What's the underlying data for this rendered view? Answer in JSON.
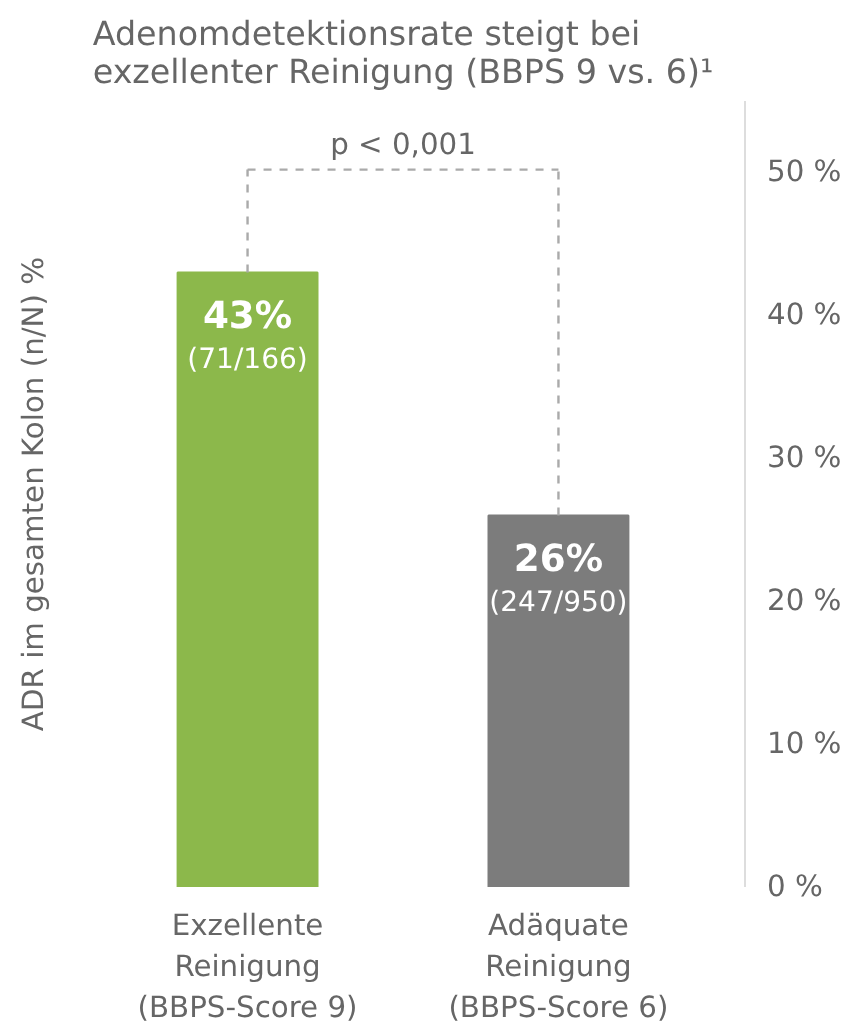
{
  "chart_data": {
    "type": "bar",
    "title": "Adenomdetektionsrate steigt bei\nexzellenter Reinigung (BBPS 9 vs. 6)¹",
    "ylabel": "ADR im gesamten Kolon (n/N) %",
    "categories": [
      "Exzellente\nReinigung\n(BBPS-Score 9)",
      "Adäquate\nReinigung\n(BBPS-Score 6)"
    ],
    "values": [
      43,
      26
    ],
    "colors": [
      "#8cb84b",
      "#7c7c7c"
    ],
    "value_labels": [
      "43%\n(71/166)",
      "26%\n(247/950)"
    ],
    "annotations": [
      "p < 0,001"
    ],
    "ylim": [
      0,
      55
    ],
    "yticks": [
      {
        "value": 0,
        "label": "0 %"
      },
      {
        "value": 10,
        "label": "10 %"
      },
      {
        "value": 20,
        "label": "20 %"
      },
      {
        "value": 30,
        "label": "30 %"
      },
      {
        "value": 40,
        "label": "40 %"
      },
      {
        "value": 50,
        "label": "50 %"
      }
    ],
    "grid": false
  }
}
